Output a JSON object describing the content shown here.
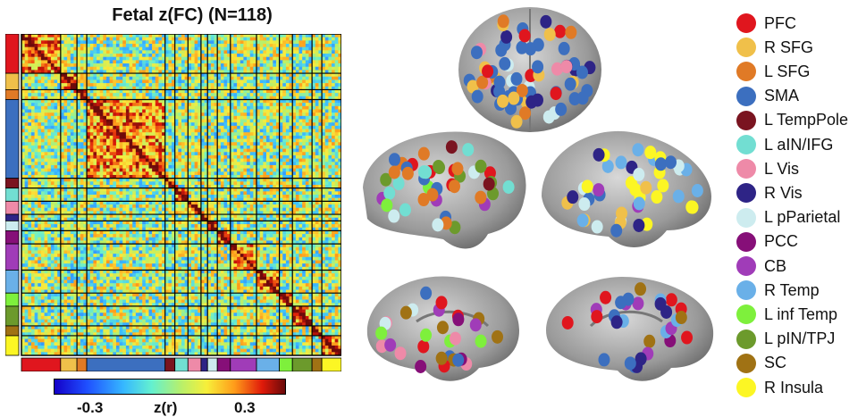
{
  "title": "Fetal z(FC) (N=118)",
  "colorbar": {
    "left_label": "-0.3",
    "center_label": "z(r)",
    "right_label": "0.3"
  },
  "legend": [
    {
      "label": "PFC",
      "color": "#e0161e"
    },
    {
      "label": "R SFG",
      "color": "#f0c04a"
    },
    {
      "label": "L SFG",
      "color": "#e07a26"
    },
    {
      "label": "SMA",
      "color": "#3c6fbf"
    },
    {
      "label": "L TempPole",
      "color": "#7a1420"
    },
    {
      "label": "L aIN/IFG",
      "color": "#72ded2"
    },
    {
      "label": "L Vis",
      "color": "#ee8aa8"
    },
    {
      "label": "R Vis",
      "color": "#2e2486"
    },
    {
      "label": "L pParietal",
      "color": "#cdecef"
    },
    {
      "label": "PCC",
      "color": "#860f78"
    },
    {
      "label": "CB",
      "color": "#a03cb8"
    },
    {
      "label": "R Temp",
      "color": "#6ab0e8"
    },
    {
      "label": "L inf Temp",
      "color": "#7ef03c"
    },
    {
      "label": "L pIN/TPJ",
      "color": "#6c9a2c"
    },
    {
      "label": "SC",
      "color": "#a07214"
    },
    {
      "label": "R Insula",
      "color": "#fcf624"
    }
  ],
  "matrix": {
    "network_order": [
      "PFC",
      "R SFG",
      "L SFG",
      "SMA",
      "L TempPole",
      "L aIN/IFG",
      "L Vis",
      "R Vis",
      "L pParietal",
      "PCC",
      "CB",
      "R Temp",
      "L inf Temp",
      "L pIN/TPJ",
      "SC",
      "R Insula"
    ],
    "network_sizes": [
      12,
      5,
      3,
      24,
      3,
      4,
      4,
      2,
      3,
      4,
      8,
      7,
      4,
      6,
      3,
      6
    ]
  }
}
